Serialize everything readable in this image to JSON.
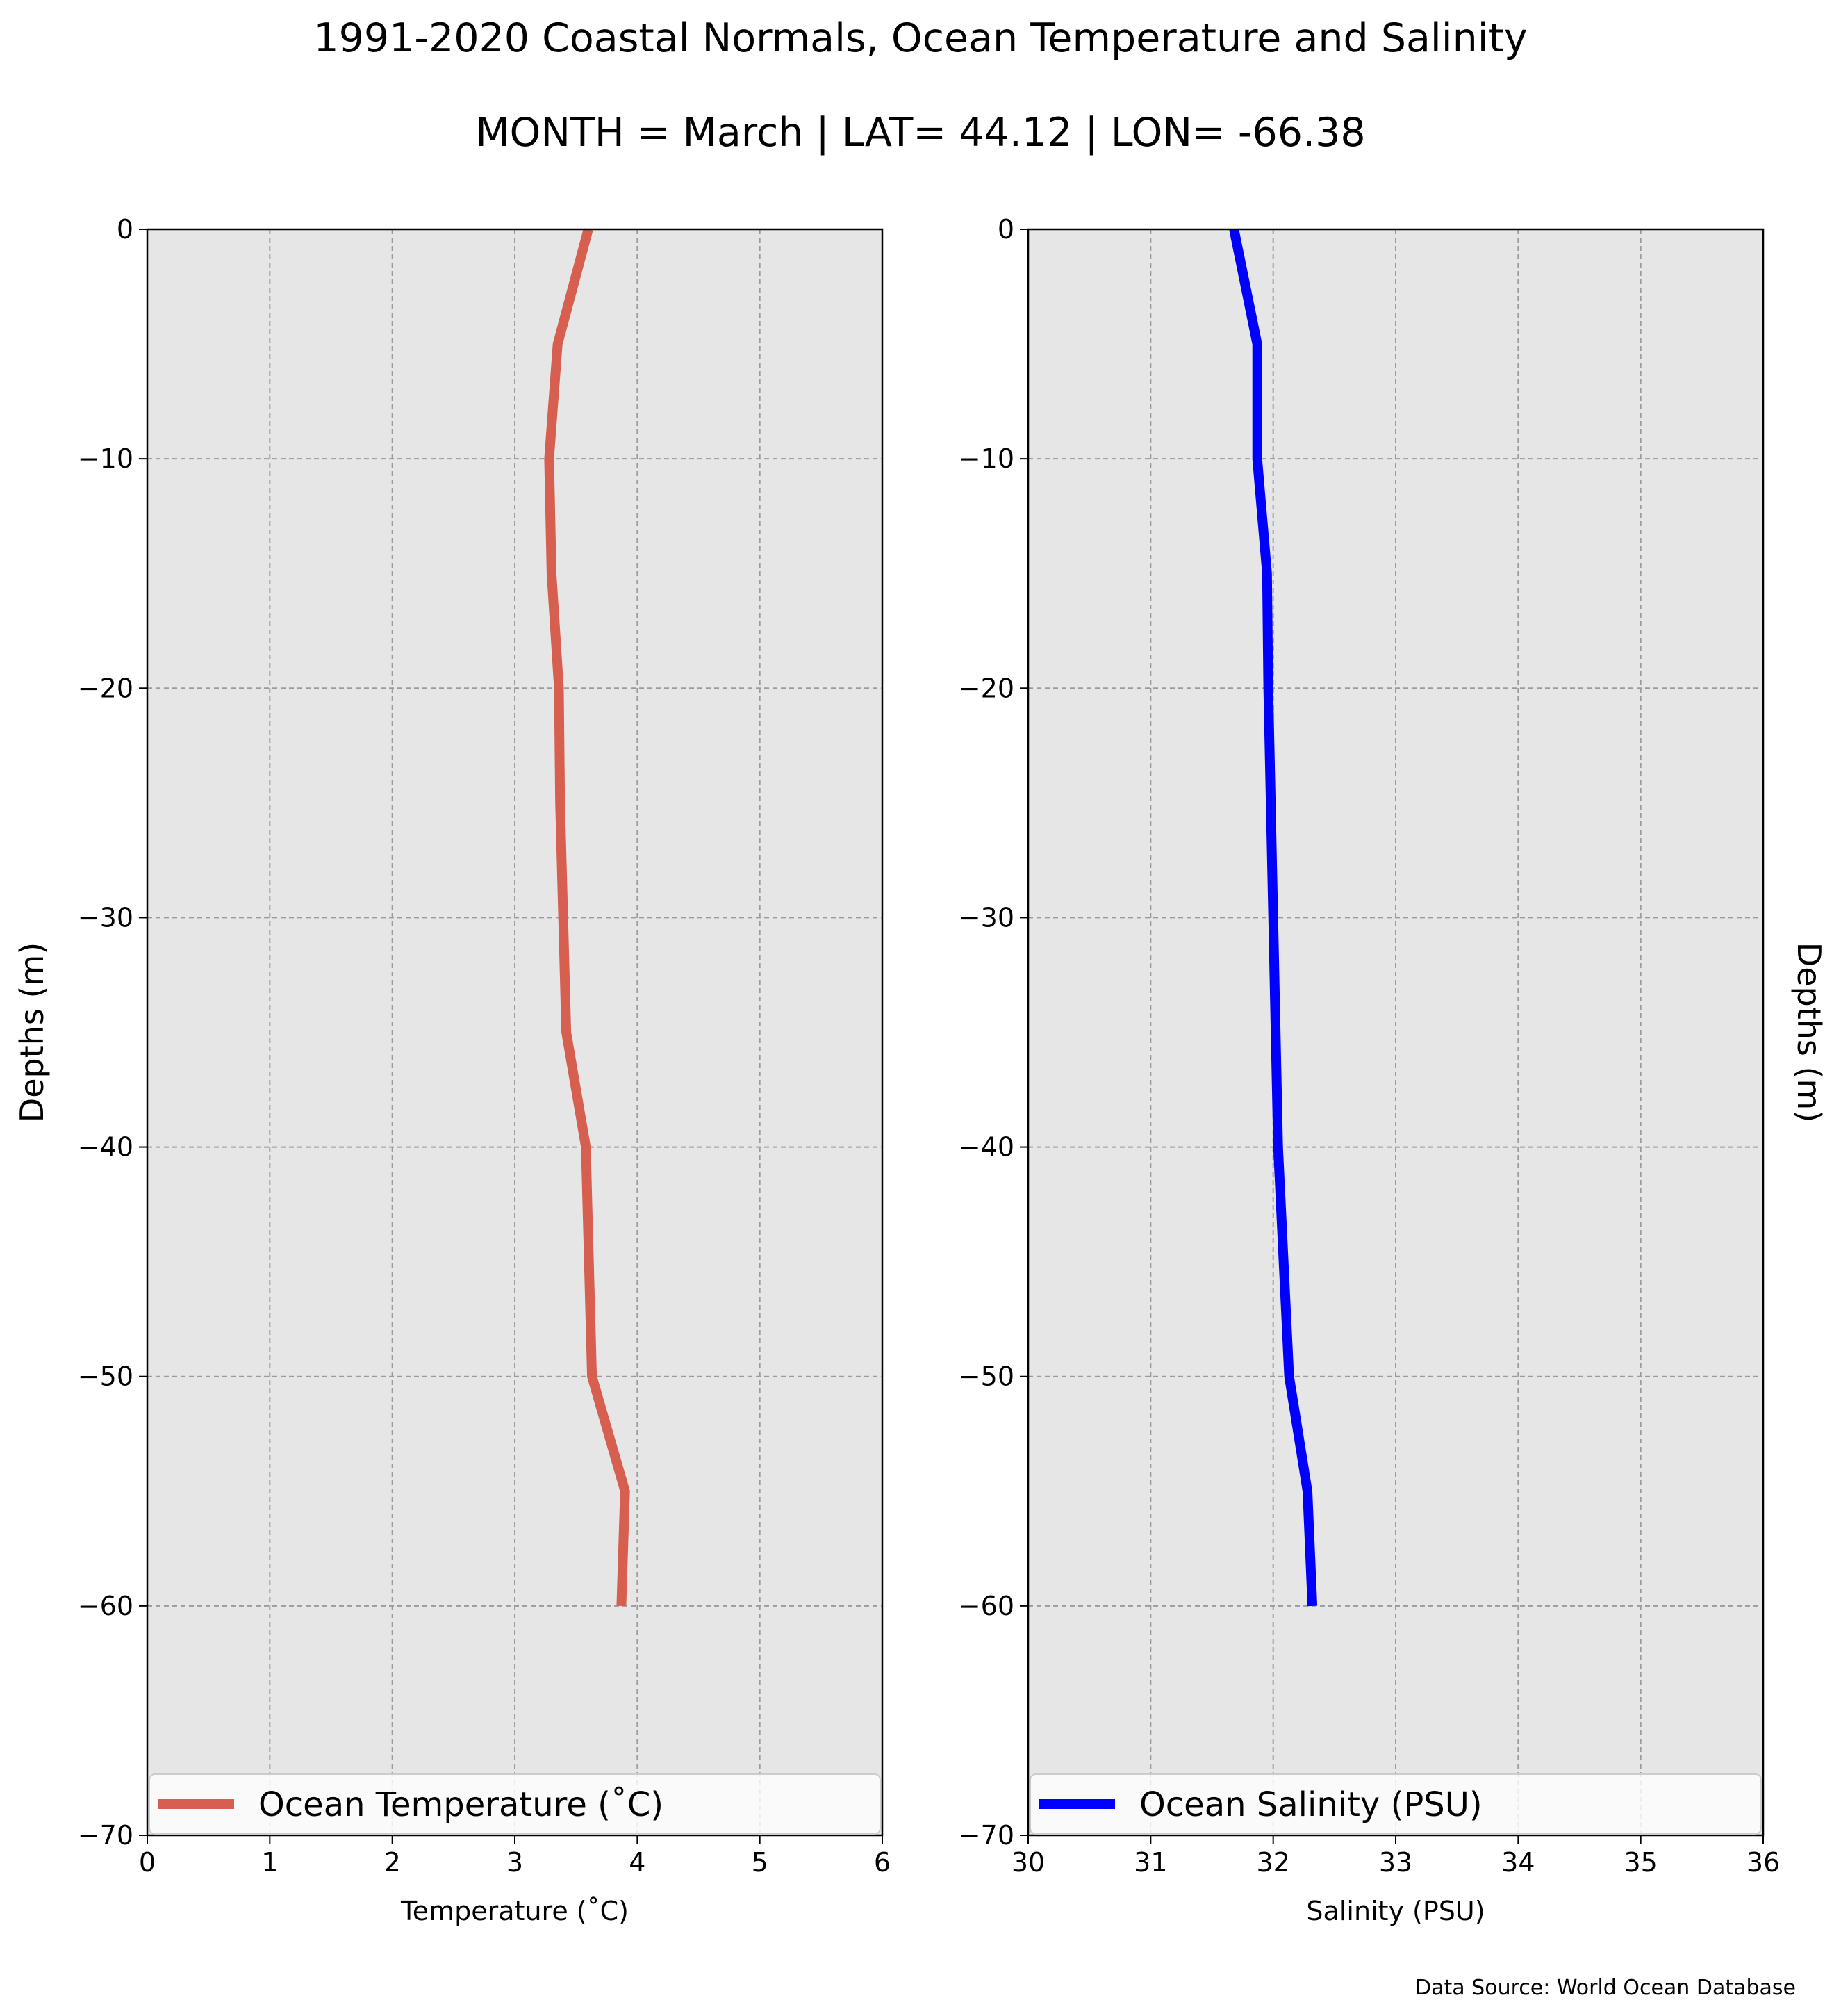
{
  "figure": {
    "title": "1991-2020 Coastal Normals, Ocean Temperature and Salinity",
    "subtitle": "MONTH = March | LAT= 44.12 | LON= -66.38",
    "source": "Data Source: World Ocean Database"
  },
  "chart_data": [
    {
      "type": "line",
      "xlabel": "Temperature (˚C)",
      "ylabel": "Depths (m)",
      "xlim": [
        0,
        6
      ],
      "ylim": [
        -70,
        0
      ],
      "xticks": [
        "0",
        "1",
        "2",
        "3",
        "4",
        "5",
        "6"
      ],
      "yticks": [
        "0",
        "−10",
        "−20",
        "−30",
        "−40",
        "−50",
        "−60",
        "−70"
      ],
      "grid": true,
      "legend_position": "bottom",
      "series": [
        {
          "name": "Ocean Temperature (˚C)",
          "color": "#d65f4f",
          "x": [
            3.6,
            3.35,
            3.28,
            3.3,
            3.36,
            3.37,
            3.42,
            3.58,
            3.63,
            3.9,
            3.87
          ],
          "y": [
            0,
            -5,
            -10,
            -15,
            -20,
            -25,
            -35,
            -40,
            -50,
            -55,
            -60
          ]
        }
      ]
    },
    {
      "type": "line",
      "xlabel": "Salinity (PSU)",
      "ylabel": "Depths (m)",
      "xlim": [
        30,
        36
      ],
      "ylim": [
        -70,
        0
      ],
      "xticks": [
        "30",
        "31",
        "32",
        "33",
        "34",
        "35",
        "36"
      ],
      "yticks": [
        "0",
        "−10",
        "−20",
        "−30",
        "−40",
        "−50",
        "−60",
        "−70"
      ],
      "grid": true,
      "legend_position": "bottom",
      "series": [
        {
          "name": "Ocean Salinity (PSU)",
          "color": "#0000ff",
          "x": [
            31.68,
            31.87,
            31.87,
            31.95,
            31.96,
            32.0,
            32.02,
            32.04,
            32.13,
            32.28,
            32.32
          ],
          "y": [
            0,
            -5,
            -10,
            -15,
            -20,
            -30,
            -35,
            -40,
            -50,
            -55,
            -60
          ]
        }
      ]
    }
  ]
}
